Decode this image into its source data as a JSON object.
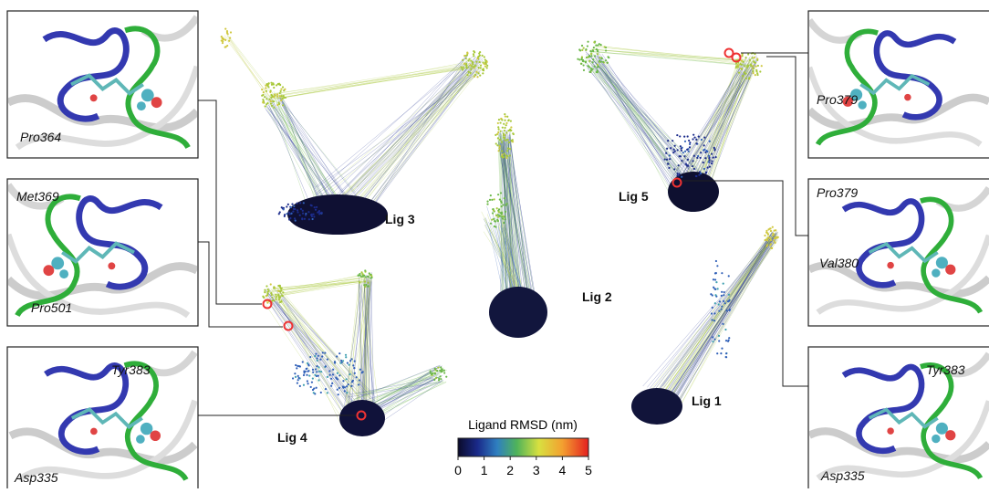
{
  "ligands": [
    "Lig 3",
    "Lig 2",
    "Lig 5",
    "Lig 1",
    "Lig 4"
  ],
  "panels": [
    {
      "labels": [
        "Pro364"
      ]
    },
    {
      "labels": [
        "Met369",
        "Pro501"
      ]
    },
    {
      "labels": [
        "Tyr383",
        "Asp335"
      ]
    },
    {
      "labels": [
        "Pro379"
      ]
    },
    {
      "labels": [
        "Pro379",
        "Val380"
      ]
    },
    {
      "labels": [
        "Tyr383",
        "Asp335"
      ]
    }
  ],
  "colorbar": {
    "title": "Ligand RMSD (nm)",
    "lim": [
      0,
      5
    ],
    "ticks": [
      0,
      1,
      2,
      3,
      4,
      5
    ]
  }
}
